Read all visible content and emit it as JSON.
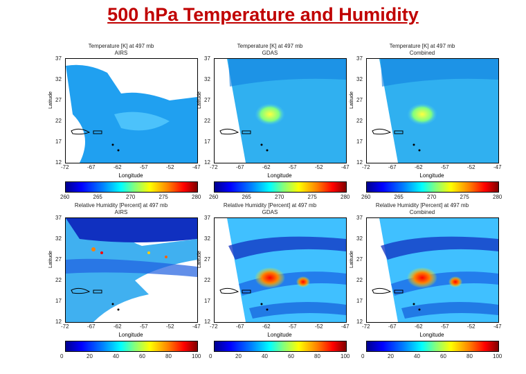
{
  "slide": {
    "title": "500 hPa Temperature and Humidity"
  },
  "panels": [
    {
      "title1": "Temperature [K] at 497 mb",
      "title2": "AIRS",
      "xlabel": "Longitude",
      "ylabel": "Latitude",
      "yticks": [
        "37",
        "32",
        "27",
        "22",
        "17",
        "12"
      ],
      "xticks": [
        "-72",
        "-67",
        "-62",
        "-57",
        "-52",
        "-47"
      ],
      "cticks": [
        "260",
        "265",
        "270",
        "275",
        "280"
      ],
      "type": "temp",
      "coverage": "partial"
    },
    {
      "title1": "Temperature [K] at 497 mb",
      "title2": "GDAS",
      "xlabel": "Longitude",
      "ylabel": "Latitude",
      "yticks": [
        "37",
        "32",
        "27",
        "22",
        "17",
        "12"
      ],
      "xticks": [
        "-72",
        "-67",
        "-62",
        "-57",
        "-52",
        "-47"
      ],
      "cticks": [
        "260",
        "265",
        "270",
        "275",
        "280"
      ],
      "type": "temp",
      "coverage": "full"
    },
    {
      "title1": "Temperature [K] at 497 mb",
      "title2": "Combined",
      "xlabel": "Longitude",
      "ylabel": "Latitude",
      "yticks": [
        "37",
        "32",
        "27",
        "22",
        "17",
        "12"
      ],
      "xticks": [
        "-72",
        "-67",
        "-62",
        "-57",
        "-52",
        "-47"
      ],
      "cticks": [
        "260",
        "265",
        "270",
        "275",
        "280"
      ],
      "type": "temp",
      "coverage": "full"
    },
    {
      "title1": "Relative Humidity [Percent] at 497 mb",
      "title2": "AIRS",
      "xlabel": "Longitude",
      "ylabel": "Latitude",
      "yticks": [
        "37",
        "32",
        "27",
        "22",
        "17",
        "12"
      ],
      "xticks": [
        "-72",
        "-67",
        "-62",
        "-57",
        "-52",
        "-47"
      ],
      "cticks": [
        "0",
        "20",
        "40",
        "60",
        "80",
        "100"
      ],
      "type": "rh",
      "coverage": "partial"
    },
    {
      "title1": "Relative Humidity [Percent] at 497 mb",
      "title2": "GDAS",
      "xlabel": "Longitude",
      "ylabel": "Latitude",
      "yticks": [
        "37",
        "32",
        "27",
        "22",
        "17",
        "12"
      ],
      "xticks": [
        "-72",
        "-67",
        "-62",
        "-57",
        "-52",
        "-47"
      ],
      "cticks": [
        "0",
        "20",
        "40",
        "60",
        "80",
        "100"
      ],
      "type": "rh",
      "coverage": "full"
    },
    {
      "title1": "Relative Humidity [Percent] at 497 mb",
      "title2": "Combined",
      "xlabel": "Longitude",
      "ylabel": "Latitude",
      "yticks": [
        "37",
        "32",
        "27",
        "22",
        "17",
        "12"
      ],
      "xticks": [
        "-72",
        "-67",
        "-62",
        "-57",
        "-52",
        "-47"
      ],
      "cticks": [
        "0",
        "20",
        "40",
        "60",
        "80",
        "100"
      ],
      "type": "rh",
      "coverage": "full"
    }
  ]
}
